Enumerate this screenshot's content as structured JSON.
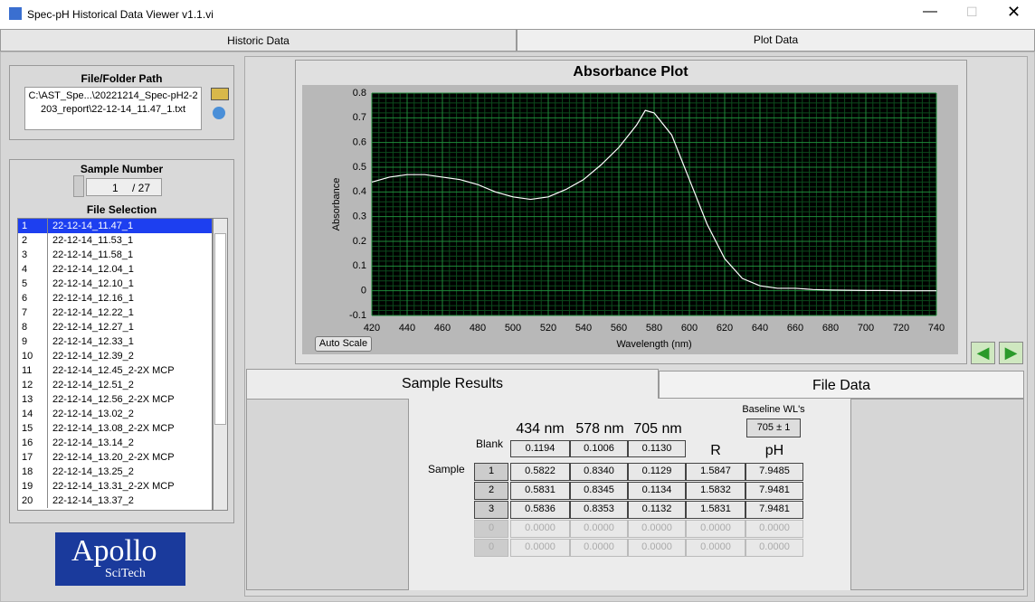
{
  "window": {
    "title": "Spec-pH Historical Data Viewer v1.1.vi"
  },
  "tabs": [
    "Historic Data",
    "Plot Data"
  ],
  "file_path": {
    "label": "File/Folder Path",
    "value": "C:\\AST_Spe...\\20221214_Spec-pH2-2203_report\\22-12-14_11.47_1.txt"
  },
  "sample_number": {
    "label": "Sample Number",
    "value": 1,
    "total": "/ 27"
  },
  "file_selection": {
    "label": "File Selection",
    "rows": [
      [
        "1",
        "22-12-14_11.47_1"
      ],
      [
        "2",
        "22-12-14_11.53_1"
      ],
      [
        "3",
        "22-12-14_11.58_1"
      ],
      [
        "4",
        "22-12-14_12.04_1"
      ],
      [
        "5",
        "22-12-14_12.10_1"
      ],
      [
        "6",
        "22-12-14_12.16_1"
      ],
      [
        "7",
        "22-12-14_12.22_1"
      ],
      [
        "8",
        "22-12-14_12.27_1"
      ],
      [
        "9",
        "22-12-14_12.33_1"
      ],
      [
        "10",
        "22-12-14_12.39_2"
      ],
      [
        "11",
        "22-12-14_12.45_2-2X MCP"
      ],
      [
        "12",
        "22-12-14_12.51_2"
      ],
      [
        "13",
        "22-12-14_12.56_2-2X MCP"
      ],
      [
        "14",
        "22-12-14_13.02_2"
      ],
      [
        "15",
        "22-12-14_13.08_2-2X MCP"
      ],
      [
        "16",
        "22-12-14_13.14_2"
      ],
      [
        "17",
        "22-12-14_13.20_2-2X MCP"
      ],
      [
        "18",
        "22-12-14_13.25_2"
      ],
      [
        "19",
        "22-12-14_13.31_2-2X MCP"
      ],
      [
        "20",
        "22-12-14_13.37_2"
      ]
    ]
  },
  "logo": {
    "name": "Apollo",
    "sub": "SciTech"
  },
  "chart_data": {
    "type": "line",
    "title": "Absorbance Plot",
    "x_label": "Wavelength (nm)",
    "y_label": "Absorbance",
    "x": [
      420,
      430,
      440,
      450,
      460,
      470,
      480,
      490,
      500,
      510,
      520,
      530,
      540,
      550,
      560,
      570,
      575,
      580,
      590,
      600,
      610,
      620,
      630,
      640,
      650,
      660,
      670,
      680,
      690,
      700,
      710,
      720,
      730,
      740
    ],
    "series": [
      {
        "color": "#ffffff",
        "values": [
          0.44,
          0.46,
          0.47,
          0.47,
          0.46,
          0.45,
          0.43,
          0.4,
          0.38,
          0.37,
          0.38,
          0.41,
          0.45,
          0.51,
          0.58,
          0.67,
          0.73,
          0.72,
          0.63,
          0.45,
          0.27,
          0.13,
          0.05,
          0.02,
          0.01,
          0.01,
          0.005,
          0.003,
          0.002,
          0.001,
          0.001,
          0,
          0,
          0
        ]
      }
    ],
    "xlim": [
      420,
      740
    ],
    "ylim": [
      -0.1,
      0.8
    ],
    "xticks": [
      420,
      440,
      460,
      480,
      500,
      520,
      540,
      560,
      580,
      600,
      620,
      640,
      660,
      680,
      700,
      720,
      740
    ],
    "yticks": [
      -0.1,
      0,
      0.1,
      0.2,
      0.3,
      0.4,
      0.5,
      0.6,
      0.7,
      0.8
    ],
    "grid": true
  },
  "auto_scale_button": "Auto Scale",
  "result_tabs": [
    "Sample Results",
    "File Data"
  ],
  "results": {
    "baseline_label": "Baseline WL's",
    "baseline_value": "705 ± 1",
    "blank_label": "Blank",
    "sample_label": "Sample",
    "wavelength_headers": [
      "434 nm",
      "578 nm",
      "705 nm"
    ],
    "r_header": "R",
    "ph_header": "pH",
    "blank": [
      "0.1194",
      "0.1006",
      "0.1130"
    ],
    "rows": [
      [
        "1",
        "0.5822",
        "0.8340",
        "0.1129",
        "1.5847",
        "7.9485"
      ],
      [
        "2",
        "0.5831",
        "0.8345",
        "0.1134",
        "1.5832",
        "7.9481"
      ],
      [
        "3",
        "0.5836",
        "0.8353",
        "0.1132",
        "1.5831",
        "7.9481"
      ],
      [
        "0",
        "0.0000",
        "0.0000",
        "0.0000",
        "0.0000",
        "0.0000"
      ],
      [
        "0",
        "0.0000",
        "0.0000",
        "0.0000",
        "0.0000",
        "0.0000"
      ]
    ]
  }
}
